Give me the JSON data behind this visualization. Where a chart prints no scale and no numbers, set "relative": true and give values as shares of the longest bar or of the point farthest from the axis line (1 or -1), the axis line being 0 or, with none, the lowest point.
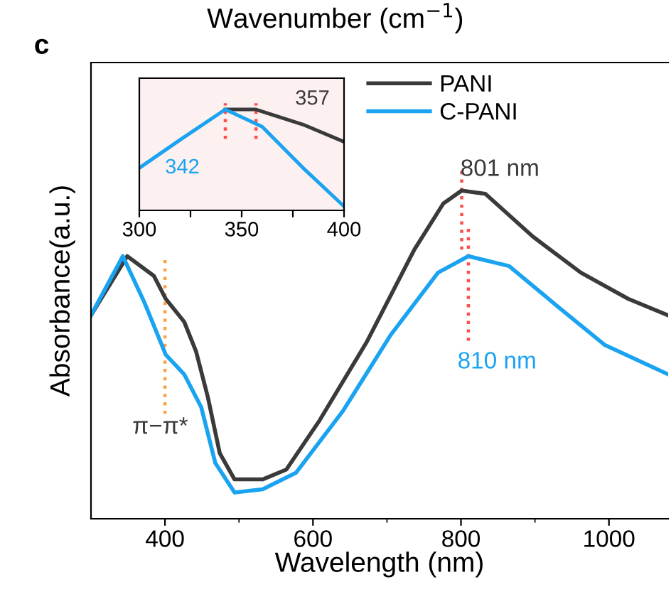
{
  "chart_data": [
    {
      "type": "line",
      "xlabel": "Wavelength (nm)",
      "ylabel": "Absorbance(a.u.)",
      "relative": true,
      "xlim": [
        300,
        1080
      ],
      "xticks": [
        400,
        600,
        800,
        1000
      ],
      "legend": "top",
      "grid": false,
      "annotations": [
        "c",
        "Wavenumber (cm$^{−1}$)"
      ],
      "series": [
        {
          "name": "PANI",
          "color": "#3a3a3a",
          "x": [
            300,
            349,
            385,
            401,
            426,
            442,
            458,
            474,
            494,
            532,
            564,
            609,
            673,
            737,
            776,
            801,
            833,
            897,
            962,
            1026,
            1080
          ],
          "values": [
            0.62,
            0.8,
            0.74,
            0.67,
            0.6,
            0.51,
            0.37,
            0.2,
            0.12,
            0.12,
            0.15,
            0.3,
            0.54,
            0.82,
            0.96,
            1.0,
            0.99,
            0.86,
            0.75,
            0.67,
            0.62
          ]
        },
        {
          "name": "C-PANI",
          "color": "#1aa3f0",
          "x": [
            300,
            343,
            372,
            401,
            426,
            449,
            468,
            494,
            532,
            577,
            641,
            705,
            769,
            810,
            865,
            929,
            994,
            1080
          ],
          "values": [
            0.62,
            0.8,
            0.66,
            0.5,
            0.44,
            0.34,
            0.17,
            0.08,
            0.09,
            0.14,
            0.33,
            0.56,
            0.75,
            0.8,
            0.77,
            0.65,
            0.53,
            0.44
          ]
        }
      ],
      "ref_lines": [
        {
          "axis": "x",
          "value": 801,
          "label": "801 nm",
          "color": "#ff4d4d",
          "line_style": "dotted"
        },
        {
          "axis": "x",
          "value": 810,
          "label": "810 nm",
          "color": "#ff4d4d",
          "line_style": "dotted"
        },
        {
          "axis": "x",
          "value": 400,
          "label": "π−π*",
          "color": "#ffa040",
          "line_style": "dotted"
        }
      ]
    },
    {
      "type": "line",
      "relative": true,
      "xlim": [
        300,
        400
      ],
      "xticks": [
        300,
        {
          "value": 325,
          "label": null
        },
        350,
        {
          "value": 375,
          "label": null
        },
        400
      ],
      "grid": false,
      "series": [
        {
          "color": "#3a3a3a",
          "x": [
            342,
            350,
            357,
            380,
            400
          ],
          "values": [
            1.0,
            1.0,
            1.0,
            0.85,
            0.68
          ]
        },
        {
          "color": "#1aa3f0",
          "x": [
            300,
            320,
            342,
            360,
            380,
            400
          ],
          "values": [
            0.42,
            0.7,
            1.0,
            0.83,
            0.42,
            0.04
          ]
        }
      ],
      "ref_lines": [
        {
          "axis": "x",
          "value": 342,
          "label": "342",
          "color": "#ff4d4d",
          "line_style": "dotted"
        },
        {
          "axis": "x",
          "value": 357,
          "label": "357",
          "color": "#ff4d4d",
          "line_style": "dotted"
        }
      ]
    }
  ]
}
